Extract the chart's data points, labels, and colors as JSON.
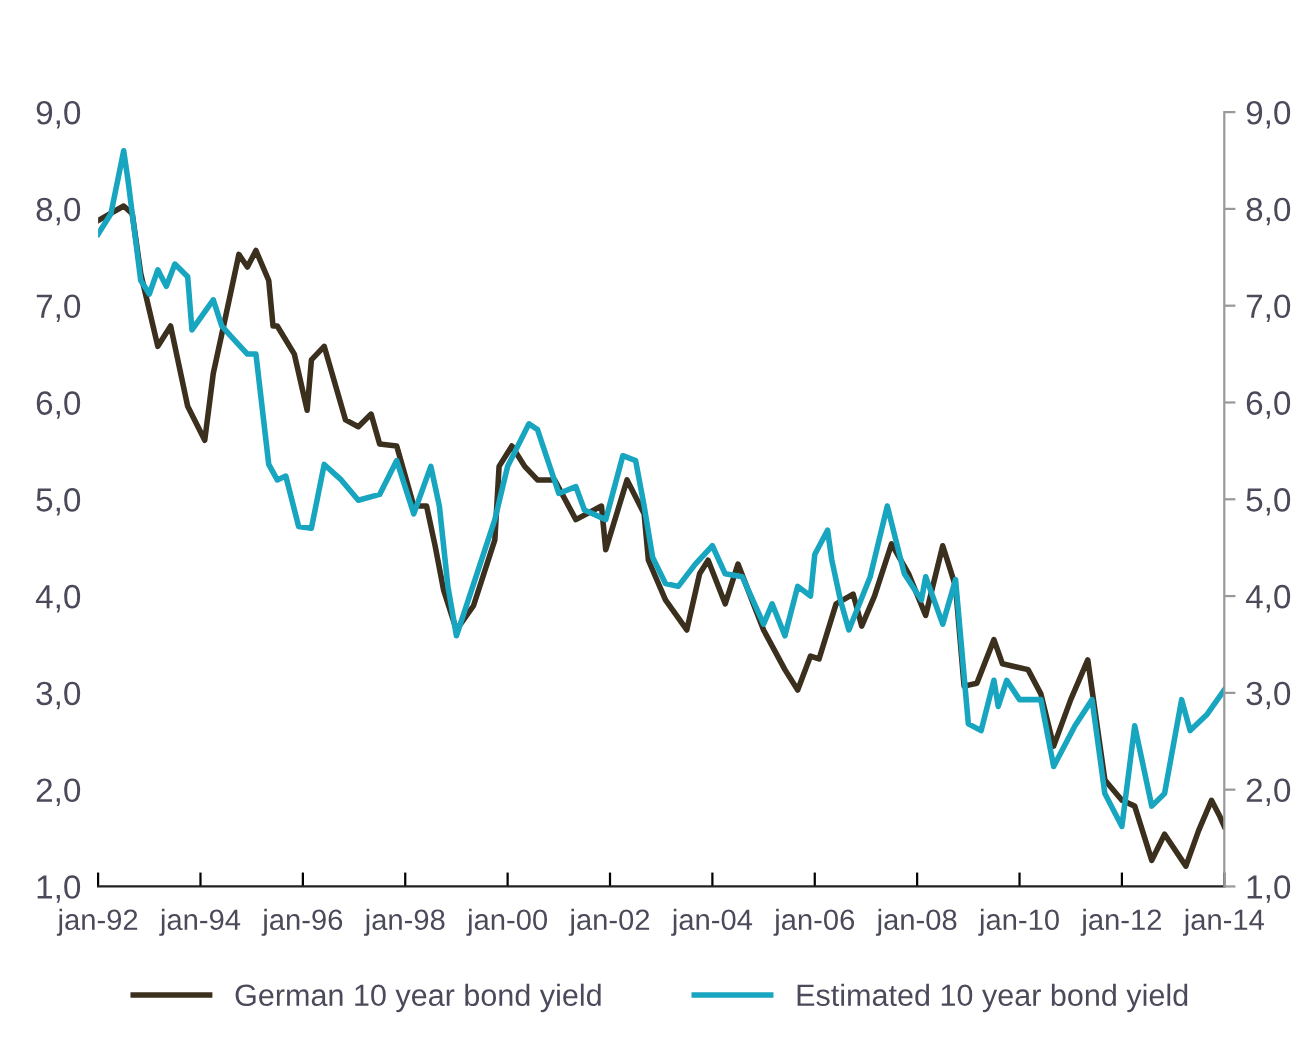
{
  "chart_data": {
    "type": "line",
    "xlim": [
      "1992-01",
      "2014-01"
    ],
    "xticks": [
      {
        "value": "1992-01",
        "label": "jan-92"
      },
      {
        "value": "1994-01",
        "label": "jan-94"
      },
      {
        "value": "1996-01",
        "label": "jan-96"
      },
      {
        "value": "1998-01",
        "label": "jan-98"
      },
      {
        "value": "2000-01",
        "label": "jan-00"
      },
      {
        "value": "2002-01",
        "label": "jan-02"
      },
      {
        "value": "2004-01",
        "label": "jan-04"
      },
      {
        "value": "2006-01",
        "label": "jan-06"
      },
      {
        "value": "2008-01",
        "label": "jan-08"
      },
      {
        "value": "2010-01",
        "label": "jan-10"
      },
      {
        "value": "2012-01",
        "label": "jan-12"
      },
      {
        "value": "2014-01",
        "label": "jan-14"
      }
    ],
    "ylim": [
      1,
      9
    ],
    "yticks": [
      {
        "value": 1,
        "label": "1,0"
      },
      {
        "value": 2,
        "label": "2,0"
      },
      {
        "value": 3,
        "label": "3,0"
      },
      {
        "value": 4,
        "label": "4,0"
      },
      {
        "value": 5,
        "label": "5,0"
      },
      {
        "value": 6,
        "label": "6,0"
      },
      {
        "value": 7,
        "label": "7,0"
      },
      {
        "value": 8,
        "label": "8,0"
      },
      {
        "value": 9,
        "label": "9,0"
      }
    ],
    "y2lim": [
      1,
      9
    ],
    "y2ticks": [
      {
        "value": 1,
        "label": "1,0"
      },
      {
        "value": 2,
        "label": "2,0"
      },
      {
        "value": 3,
        "label": "3,0"
      },
      {
        "value": 4,
        "label": "4,0"
      },
      {
        "value": 5,
        "label": "5,0"
      },
      {
        "value": 6,
        "label": "6,0"
      },
      {
        "value": 7,
        "label": "7,0"
      },
      {
        "value": 8,
        "label": "8,0"
      },
      {
        "value": 9,
        "label": "9,0"
      }
    ],
    "grid": false,
    "legend": "bottom",
    "marker": "none",
    "line_style": "solid",
    "series": [
      {
        "name": "German 10 year bond yield",
        "color": "#3b2f1e",
        "x": [
          "1992-01",
          "1992-07",
          "1992-09",
          "1992-11",
          "1993-03",
          "1993-06",
          "1993-10",
          "1994-02",
          "1994-04",
          "1994-07",
          "1994-10",
          "1994-12",
          "1995-02",
          "1995-05",
          "1995-06",
          "1995-07",
          "1995-11",
          "1996-02",
          "1996-03",
          "1996-06",
          "1996-11",
          "1997-02",
          "1997-05",
          "1997-07",
          "1997-11",
          "1998-03",
          "1998-06",
          "1998-08",
          "1998-10",
          "1999-01",
          "1999-05",
          "1999-10",
          "1999-11",
          "2000-02",
          "2000-05",
          "2000-08",
          "2000-12",
          "2001-05",
          "2001-11",
          "2001-12",
          "2002-05",
          "2002-09",
          "2002-10",
          "2003-02",
          "2003-07",
          "2003-10",
          "2003-12",
          "2004-04",
          "2004-07",
          "2005-01",
          "2005-06",
          "2005-09",
          "2005-12",
          "2006-02",
          "2006-06",
          "2006-10",
          "2006-12",
          "2007-03",
          "2007-07",
          "2007-11",
          "2008-03",
          "2008-07",
          "2008-10",
          "2008-12",
          "2009-03",
          "2009-07",
          "2009-09",
          "2010-03",
          "2010-06",
          "2010-09",
          "2011-01",
          "2011-05",
          "2011-09",
          "2012-01",
          "2012-04",
          "2012-08",
          "2012-11",
          "2013-04",
          "2013-07",
          "2013-10",
          "2013-12",
          "2014-01"
        ],
        "values": [
          7.88,
          8.03,
          7.95,
          7.33,
          6.58,
          6.79,
          5.96,
          5.61,
          6.3,
          6.91,
          7.53,
          7.4,
          7.57,
          7.26,
          6.79,
          6.79,
          6.5,
          5.92,
          6.44,
          6.58,
          5.82,
          5.75,
          5.88,
          5.57,
          5.55,
          4.93,
          4.93,
          4.52,
          4.06,
          3.65,
          3.9,
          4.58,
          5.34,
          5.55,
          5.34,
          5.2,
          5.2,
          4.79,
          4.93,
          4.48,
          5.2,
          4.85,
          4.37,
          3.96,
          3.65,
          4.23,
          4.37,
          3.92,
          4.33,
          3.65,
          3.24,
          3.03,
          3.38,
          3.35,
          3.92,
          4.02,
          3.69,
          4.0,
          4.54,
          4.23,
          3.8,
          4.52,
          4.1,
          3.07,
          3.1,
          3.55,
          3.3,
          3.24,
          2.99,
          2.45,
          2.93,
          3.34,
          2.1,
          1.89,
          1.83,
          1.27,
          1.54,
          1.21,
          1.58,
          1.89,
          1.72,
          1.62
        ]
      },
      {
        "name": "Estimated 10 year bond yield",
        "color": "#17a5c0",
        "x": [
          "1992-01",
          "1992-04",
          "1992-07",
          "1992-08",
          "1992-11",
          "1993-01",
          "1993-03",
          "1993-05",
          "1993-07",
          "1993-10",
          "1993-11",
          "1994-04",
          "1994-06",
          "1994-08",
          "1994-12",
          "1995-02",
          "1995-05",
          "1995-07",
          "1995-09",
          "1995-12",
          "1996-03",
          "1996-06",
          "1996-10",
          "1997-02",
          "1997-07",
          "1997-11",
          "1998-03",
          "1998-07",
          "1998-09",
          "1998-11",
          "1999-01",
          "1999-10",
          "2000-01",
          "2000-06",
          "2000-08",
          "2001-01",
          "2001-05",
          "2001-07",
          "2001-12",
          "2002-04",
          "2002-07",
          "2002-09",
          "2002-11",
          "2003-02",
          "2003-05",
          "2003-09",
          "2004-01",
          "2004-04",
          "2004-08",
          "2005-01",
          "2005-03",
          "2005-06",
          "2005-09",
          "2005-12",
          "2006-01",
          "2006-04",
          "2006-05",
          "2006-07",
          "2006-09",
          "2007-02",
          "2007-06",
          "2007-10",
          "2008-02",
          "2008-03",
          "2008-07",
          "2008-10",
          "2009-01",
          "2009-04",
          "2009-07",
          "2009-08",
          "2009-10",
          "2010-01",
          "2010-06",
          "2010-09",
          "2011-02",
          "2011-06",
          "2011-09",
          "2012-01",
          "2012-04",
          "2012-08",
          "2012-11",
          "2013-03",
          "2013-05",
          "2013-09",
          "2014-01"
        ],
        "values": [
          7.74,
          7.95,
          8.6,
          8.3,
          7.26,
          7.12,
          7.37,
          7.2,
          7.43,
          7.3,
          6.75,
          7.06,
          6.79,
          6.69,
          6.5,
          6.5,
          5.36,
          5.2,
          5.24,
          4.72,
          4.7,
          5.36,
          5.2,
          4.99,
          5.05,
          5.4,
          4.85,
          5.34,
          4.93,
          4.1,
          3.59,
          4.79,
          5.34,
          5.78,
          5.72,
          5.06,
          5.13,
          4.89,
          4.79,
          5.45,
          5.4,
          4.93,
          4.4,
          4.13,
          4.1,
          4.33,
          4.52,
          4.23,
          4.2,
          3.71,
          3.92,
          3.59,
          4.1,
          4.0,
          4.43,
          4.68,
          4.37,
          3.96,
          3.65,
          4.2,
          4.93,
          4.23,
          3.96,
          4.2,
          3.71,
          4.17,
          2.68,
          2.61,
          3.13,
          2.86,
          3.13,
          2.93,
          2.93,
          2.24,
          2.66,
          2.93,
          1.96,
          1.62,
          2.66,
          1.83,
          1.96,
          2.93,
          2.61,
          2.78,
          3.03
        ]
      }
    ]
  }
}
